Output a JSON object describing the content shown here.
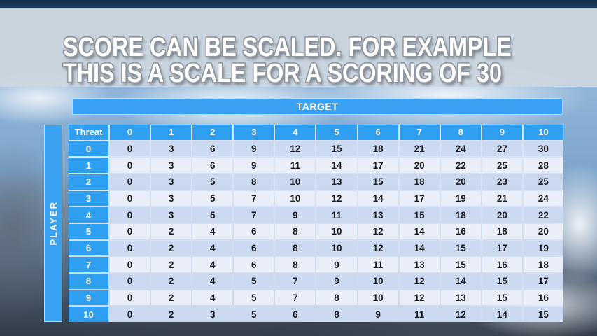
{
  "slide": {
    "title_line1": "SCORE CAN BE SCALED. FOR EXAMPLE",
    "title_line2": "THIS IS A SCALE FOR A SCORING OF 30"
  },
  "table": {
    "target_label": "TARGET",
    "player_label": "PLAYER",
    "corner_label": "Threat",
    "column_headers": [
      "0",
      "1",
      "2",
      "3",
      "4",
      "5",
      "6",
      "7",
      "8",
      "9",
      "10"
    ],
    "row_headers": [
      "0",
      "1",
      "2",
      "3",
      "4",
      "5",
      "6",
      "7",
      "8",
      "9",
      "10"
    ],
    "rows": [
      [
        0,
        3,
        6,
        9,
        12,
        15,
        18,
        21,
        24,
        27,
        30
      ],
      [
        0,
        3,
        6,
        9,
        11,
        14,
        17,
        20,
        22,
        25,
        28
      ],
      [
        0,
        3,
        5,
        8,
        10,
        13,
        15,
        18,
        20,
        23,
        25
      ],
      [
        0,
        3,
        5,
        7,
        10,
        12,
        14,
        17,
        19,
        21,
        24
      ],
      [
        0,
        3,
        5,
        7,
        9,
        11,
        13,
        15,
        18,
        20,
        22
      ],
      [
        0,
        2,
        4,
        6,
        8,
        10,
        12,
        14,
        16,
        18,
        20
      ],
      [
        0,
        2,
        4,
        6,
        8,
        10,
        12,
        14,
        15,
        17,
        19
      ],
      [
        0,
        2,
        4,
        6,
        8,
        9,
        11,
        13,
        15,
        16,
        18
      ],
      [
        0,
        2,
        4,
        5,
        7,
        9,
        10,
        12,
        14,
        15,
        17
      ],
      [
        0,
        2,
        4,
        5,
        7,
        8,
        10,
        12,
        13,
        15,
        16
      ],
      [
        0,
        2,
        3,
        5,
        6,
        8,
        9,
        11,
        12,
        14,
        15
      ]
    ]
  },
  "colors": {
    "header_blue": "#2f9ff2",
    "target_bar_blue": "#3aa2f3",
    "row_stripe_light": "#cbd9f1",
    "row_stripe_lighter": "#e9eef9",
    "title_band": "#ced6df",
    "title_text": "#ffffff"
  }
}
